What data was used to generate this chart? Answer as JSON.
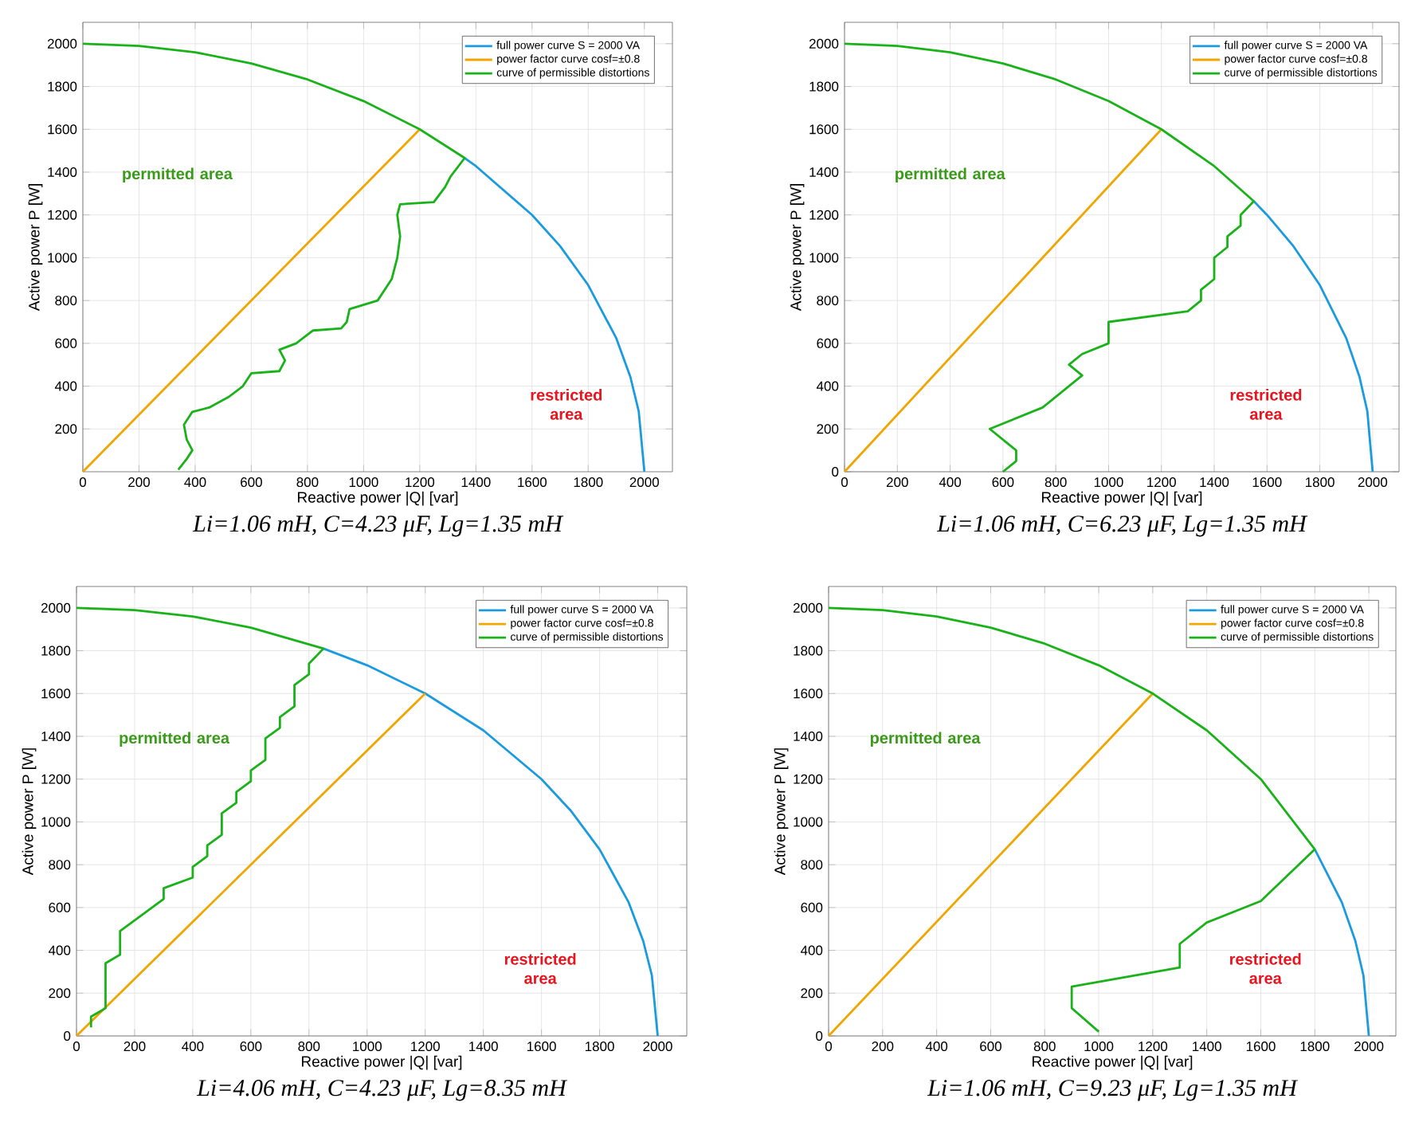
{
  "chart_data": [
    {
      "type": "line",
      "title": "Li=1.06 mH, C=4.23 μF, Lg=1.35 mH",
      "xlabel": "Reactive power |Q| [var]",
      "ylabel": "Active power P [W]",
      "xlim": [
        0,
        2100
      ],
      "ylim": [
        0,
        2100
      ],
      "xticks": [
        0,
        200,
        400,
        600,
        800,
        1000,
        1200,
        1400,
        1600,
        1800,
        2000
      ],
      "yticks": [
        200,
        400,
        600,
        800,
        1000,
        1200,
        1400,
        1600,
        1800,
        2000
      ],
      "grid": true,
      "legend": "top right",
      "annotations": [
        "permitted area",
        "restricted area"
      ],
      "series": [
        {
          "name": "full power curve S = 2000 VA",
          "color": "#1a9be0",
          "x": [
            1360,
            1400,
            1600,
            1700,
            1800,
            1900,
            1950,
            1980,
            2000
          ],
          "values": [
            1466,
            1428,
            1200,
            1054,
            872,
            624,
            444,
            282,
            0
          ]
        },
        {
          "name": "power factor curve cosf=±0.8",
          "color": "#f0a500",
          "x": [
            0,
            1200
          ],
          "values": [
            0,
            1600
          ]
        },
        {
          "name": "curve of permissible distortions",
          "color": "#19b219",
          "x": [
            340,
            370,
            390,
            370,
            360,
            390,
            450,
            520,
            570,
            600,
            700,
            720,
            700,
            760,
            780,
            820,
            920,
            940,
            950,
            1050,
            1100,
            1120,
            1130,
            1120,
            1130,
            1250,
            1290,
            1310,
            1360,
            1200,
            1000,
            800,
            600,
            400,
            200,
            0
          ],
          "values": [
            10,
            60,
            100,
            150,
            220,
            280,
            300,
            350,
            400,
            460,
            470,
            520,
            570,
            600,
            620,
            660,
            670,
            700,
            760,
            800,
            900,
            1000,
            1100,
            1200,
            1250,
            1260,
            1330,
            1380,
            1466,
            1600,
            1732,
            1833,
            1908,
            1960,
            1990,
            2000
          ]
        }
      ]
    },
    {
      "type": "line",
      "title": "Li=1.06 mH, C=6.23 μF, Lg=1.35 mH",
      "xlabel": "Reactive power |Q| [var]",
      "ylabel": "Active power P [W]",
      "xlim": [
        0,
        2100
      ],
      "ylim": [
        0,
        2100
      ],
      "xticks": [
        0,
        200,
        400,
        600,
        800,
        1000,
        1200,
        1400,
        1600,
        1800,
        2000
      ],
      "yticks": [
        0,
        200,
        400,
        600,
        800,
        1000,
        1200,
        1400,
        1600,
        1800,
        2000
      ],
      "grid": true,
      "legend": "top right",
      "annotations": [
        "permitted area",
        "restricted area"
      ],
      "series": [
        {
          "name": "full power curve S = 2000 VA",
          "color": "#1a9be0",
          "x": [
            1550,
            1600,
            1700,
            1800,
            1900,
            1950,
            1980,
            2000
          ],
          "values": [
            1264,
            1200,
            1054,
            872,
            624,
            444,
            282,
            0
          ]
        },
        {
          "name": "power factor curve cosf=±0.8",
          "color": "#f0a500",
          "x": [
            0,
            1200
          ],
          "values": [
            0,
            1600
          ]
        },
        {
          "name": "curve of permissible distortions",
          "color": "#19b219",
          "x": [
            600,
            650,
            650,
            550,
            750,
            900,
            850,
            900,
            1000,
            1000,
            1300,
            1350,
            1350,
            1400,
            1400,
            1450,
            1450,
            1500,
            1500,
            1550,
            1400,
            1200,
            1000,
            800,
            600,
            400,
            200,
            0
          ],
          "values": [
            0,
            50,
            100,
            200,
            300,
            450,
            500,
            550,
            600,
            700,
            750,
            800,
            850,
            900,
            1000,
            1050,
            1100,
            1150,
            1200,
            1264,
            1428,
            1600,
            1732,
            1833,
            1908,
            1960,
            1990,
            2000
          ]
        }
      ]
    },
    {
      "type": "line",
      "title": "Li=4.06 mH, C=4.23 μF, Lg=8.35 mH",
      "xlabel": "Reactive power |Q| [var]",
      "ylabel": "Active power P [W]",
      "xlim": [
        0,
        2100
      ],
      "ylim": [
        0,
        2100
      ],
      "xticks": [
        0,
        200,
        400,
        600,
        800,
        1000,
        1200,
        1400,
        1600,
        1800,
        2000
      ],
      "yticks": [
        0,
        200,
        400,
        600,
        800,
        1000,
        1200,
        1400,
        1600,
        1800,
        2000
      ],
      "grid": true,
      "legend": "top right",
      "annotations": [
        "permitted area",
        "restricted area"
      ],
      "series": [
        {
          "name": "full power curve S = 2000 VA",
          "color": "#1a9be0",
          "x": [
            850,
            1000,
            1200,
            1400,
            1600,
            1700,
            1800,
            1900,
            1950,
            1980,
            2000
          ],
          "values": [
            1810,
            1732,
            1600,
            1428,
            1200,
            1054,
            872,
            624,
            444,
            282,
            0
          ]
        },
        {
          "name": "power factor curve cosf=±0.8",
          "color": "#f0a500",
          "x": [
            0,
            1200
          ],
          "values": [
            0,
            1600
          ]
        },
        {
          "name": "curve of permissible distortions",
          "color": "#19b219",
          "x": [
            50,
            50,
            100,
            100,
            150,
            150,
            300,
            300,
            400,
            400,
            450,
            450,
            500,
            500,
            550,
            550,
            600,
            600,
            650,
            650,
            700,
            700,
            750,
            750,
            800,
            800,
            850,
            600,
            400,
            200,
            0
          ],
          "values": [
            40,
            90,
            130,
            340,
            380,
            490,
            640,
            690,
            740,
            790,
            840,
            890,
            940,
            1040,
            1090,
            1140,
            1190,
            1240,
            1290,
            1390,
            1440,
            1490,
            1540,
            1640,
            1690,
            1740,
            1810,
            1908,
            1960,
            1990,
            2000
          ]
        }
      ]
    },
    {
      "type": "line",
      "title": "Li=1.06 mH, C=9.23 μF, Lg=1.35 mH",
      "xlabel": "Reactive power |Q| [var]",
      "ylabel": "Active power P [W]",
      "xlim": [
        0,
        2100
      ],
      "ylim": [
        0,
        2100
      ],
      "xticks": [
        0,
        200,
        400,
        600,
        800,
        1000,
        1200,
        1400,
        1600,
        1800,
        2000
      ],
      "yticks": [
        0,
        200,
        400,
        600,
        800,
        1000,
        1200,
        1400,
        1600,
        1800,
        2000
      ],
      "grid": true,
      "legend": "top right",
      "annotations": [
        "permitted area",
        "restricted area"
      ],
      "series": [
        {
          "name": "full power curve S = 2000 VA",
          "color": "#1a9be0",
          "x": [
            1800,
            1900,
            1950,
            1980,
            2000
          ],
          "values": [
            872,
            624,
            444,
            282,
            0
          ]
        },
        {
          "name": "power factor curve cosf=±0.8",
          "color": "#f0a500",
          "x": [
            0,
            1200
          ],
          "values": [
            0,
            1600
          ]
        },
        {
          "name": "curve of permissible distortions",
          "color": "#19b219",
          "x": [
            1000,
            900,
            900,
            1300,
            1300,
            1400,
            1600,
            1800,
            1600,
            1400,
            1200,
            1000,
            800,
            600,
            400,
            200,
            0
          ],
          "values": [
            20,
            130,
            230,
            320,
            430,
            530,
            630,
            872,
            1200,
            1428,
            1600,
            1732,
            1833,
            1908,
            1960,
            1990,
            2000
          ]
        }
      ]
    }
  ]
}
